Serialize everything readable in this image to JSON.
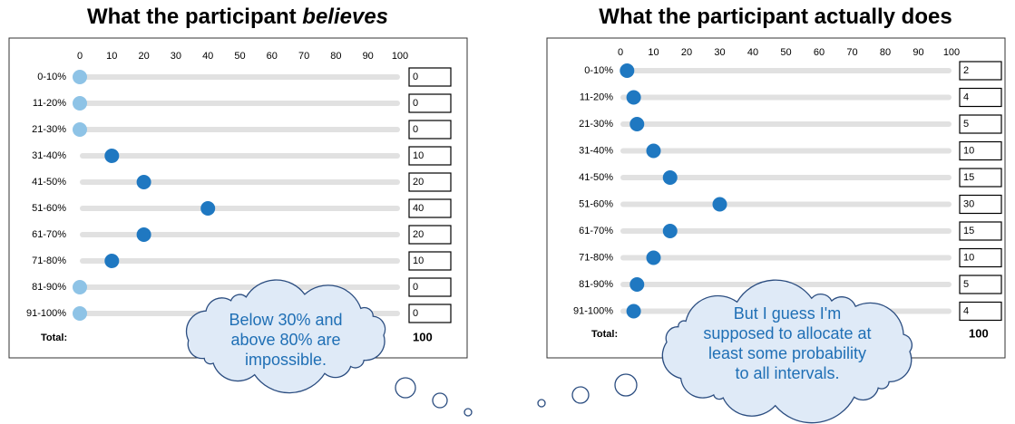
{
  "panels": [
    {
      "title": "What the participant ",
      "title_emphasis": "believes",
      "scale": [
        0,
        10,
        20,
        30,
        40,
        50,
        60,
        70,
        80,
        90,
        100
      ],
      "rows": [
        "0-10%",
        "11-20%",
        "21-30%",
        "31-40%",
        "41-50%",
        "51-60%",
        "61-70%",
        "71-80%",
        "81-90%",
        "91-100%"
      ],
      "values": [
        0,
        0,
        0,
        10,
        20,
        40,
        20,
        10,
        0,
        0
      ],
      "total_label": "Total:",
      "total": 100,
      "thought": [
        "Below 30% and",
        "above 80% are",
        "impossible."
      ]
    },
    {
      "title": "What the participant actually does",
      "scale": [
        0,
        10,
        20,
        30,
        40,
        50,
        60,
        70,
        80,
        90,
        100
      ],
      "rows": [
        "0-10%",
        "11-20%",
        "21-30%",
        "31-40%",
        "41-50%",
        "51-60%",
        "61-70%",
        "71-80%",
        "81-90%",
        "91-100%"
      ],
      "values": [
        2,
        4,
        5,
        10,
        15,
        30,
        15,
        10,
        5,
        4
      ],
      "total_label": "Total:",
      "total": 100,
      "thought": [
        "But I guess I'm",
        "supposed to allocate at",
        "least some probability",
        "to all intervals."
      ]
    }
  ]
}
